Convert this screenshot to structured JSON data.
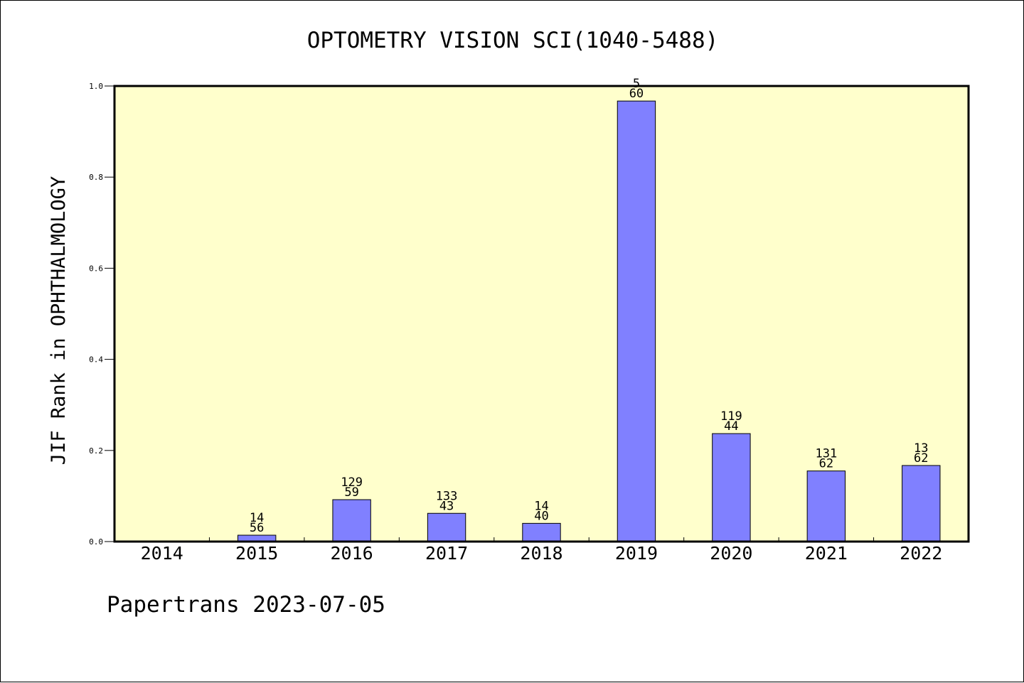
{
  "footer": {
    "text": "Papertrans 2023-07-05"
  },
  "colors": {
    "plot_background": "#ffffcc",
    "bar_fill": "#8080ff",
    "bar_stroke": "#000000",
    "axis": "#000000",
    "page_background": "#ffffff"
  },
  "chart_data": {
    "type": "bar",
    "title": "OPTOMETRY VISION SCI(1040-5488)",
    "xlabel": "",
    "ylabel": "JIF Rank in OPHTHALMOLOGY",
    "ylim": [
      0,
      1.0
    ],
    "yticks": [
      "0.0",
      "0.2",
      "0.4",
      "0.6",
      "0.8",
      "1.0"
    ],
    "grid": false,
    "legend": "none",
    "categories": [
      "2014",
      "2015",
      "2016",
      "2017",
      "2018",
      "2019",
      "2020",
      "2021",
      "2022"
    ],
    "values": [
      null,
      0.014,
      0.092,
      0.062,
      0.04,
      0.967,
      0.237,
      0.155,
      0.167
    ],
    "labels": [
      null,
      [
        "14",
        "56"
      ],
      [
        "129",
        "59"
      ],
      [
        "133",
        "43"
      ],
      [
        "14",
        "40"
      ],
      [
        "5",
        "60"
      ],
      [
        "119",
        "44"
      ],
      [
        "131",
        "62"
      ],
      [
        "13",
        "62"
      ]
    ]
  }
}
